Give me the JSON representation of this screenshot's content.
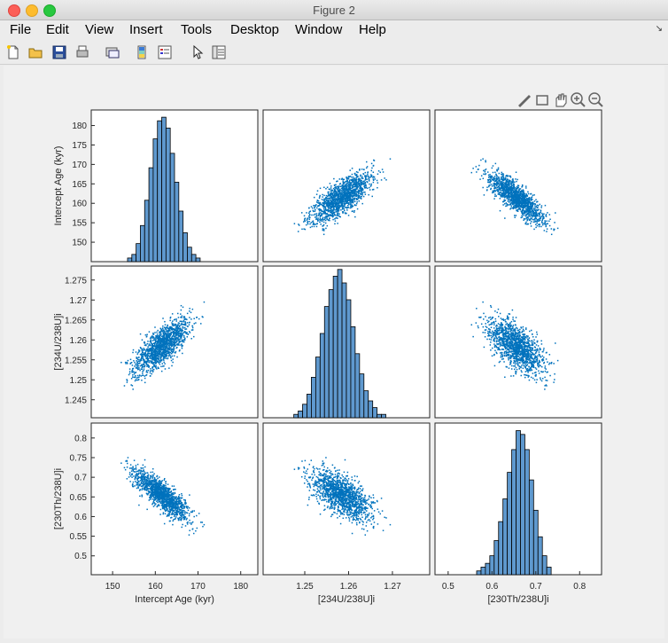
{
  "window": {
    "title": "Figure 2"
  },
  "menu": {
    "items": [
      "File",
      "Edit",
      "View",
      "Insert",
      "Tools",
      "Desktop",
      "Window",
      "Help"
    ]
  },
  "toolbar": {
    "icons": [
      "new-file-icon",
      "open-folder-icon",
      "save-icon",
      "print-icon",
      "link-icon",
      "colorbar-icon",
      "legend-icon",
      "pointer-icon",
      "property-inspector-icon"
    ]
  },
  "axes_toolbar": {
    "icons": [
      "brush-icon",
      "data-tip-icon",
      "pan-hand-icon",
      "zoom-in-icon",
      "zoom-out-icon"
    ]
  },
  "colors": {
    "marker": "#0072bd",
    "bar_fill": "#5f99cf",
    "bar_edge": "#000000",
    "axes_bg": "#ffffff"
  },
  "chart_data": {
    "type": "scatter",
    "variables": [
      {
        "label": "Intercept Age (kyr)",
        "lim": [
          145,
          184
        ],
        "ticks": [
          150,
          155,
          160,
          165,
          170,
          175,
          180
        ],
        "xlim": [
          145,
          184
        ],
        "xticks": [
          150,
          160,
          170,
          180
        ]
      },
      {
        "label": "[234U/238U]i",
        "lim": [
          1.2405,
          1.2785
        ],
        "ticks": [
          1.245,
          1.25,
          1.255,
          1.26,
          1.265,
          1.27,
          1.275
        ],
        "xlim": [
          1.2405,
          1.2785
        ],
        "xticks": [
          1.25,
          1.26,
          1.27
        ]
      },
      {
        "label": "[230Th/238U]i",
        "lim": [
          0.452,
          0.838
        ],
        "ticks": [
          0.5,
          0.55,
          0.6,
          0.65,
          0.7,
          0.75,
          0.8
        ],
        "xlim": [
          0.47,
          0.85
        ],
        "xticks": [
          0.5,
          0.6,
          0.7,
          0.8
        ]
      }
    ],
    "histograms": [
      {
        "bin_centers": [
          154,
          155,
          156,
          157,
          158,
          159,
          160,
          161,
          162,
          163,
          164,
          165,
          166,
          167,
          168,
          169,
          170
        ],
        "values": [
          1,
          2,
          5,
          10,
          17,
          26,
          34,
          39,
          40,
          37,
          30,
          22,
          14,
          8,
          4,
          2,
          1
        ],
        "ylim_rel": 42
      },
      {
        "bin_centers": [
          1.248,
          1.249,
          1.25,
          1.251,
          1.252,
          1.253,
          1.254,
          1.255,
          1.256,
          1.257,
          1.258,
          1.259,
          1.26,
          1.261,
          1.262,
          1.263,
          1.264,
          1.265,
          1.266,
          1.267,
          1.268
        ],
        "values": [
          1,
          2,
          4,
          7,
          12,
          18,
          25,
          33,
          38,
          42,
          44,
          40,
          35,
          27,
          19,
          13,
          8,
          5,
          3,
          1,
          1
        ],
        "ylim_rel": 45
      },
      {
        "bin_centers": [
          0.57,
          0.58,
          0.59,
          0.6,
          0.61,
          0.62,
          0.63,
          0.64,
          0.65,
          0.66,
          0.67,
          0.68,
          0.69,
          0.7,
          0.71,
          0.72,
          0.73
        ],
        "values": [
          1,
          2,
          3,
          5,
          9,
          14,
          20,
          27,
          33,
          38,
          37,
          33,
          25,
          17,
          10,
          5,
          2
        ],
        "ylim_rel": 40
      }
    ],
    "means": [
      161.5,
      1.2585,
      0.655
    ],
    "stds": [
      3.3,
      0.0035,
      0.032
    ],
    "correlations": {
      "0-1": 0.75,
      "0-2": -0.85,
      "1-2": -0.65
    },
    "n_points": 1400
  }
}
